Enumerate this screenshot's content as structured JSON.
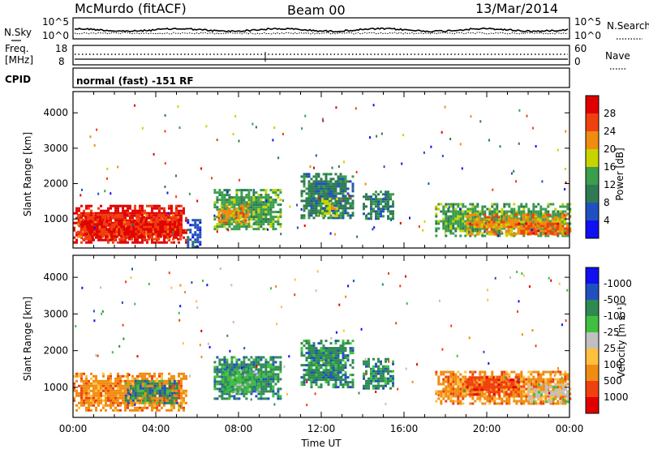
{
  "header": {
    "station": "McMurdo (fitACF)",
    "beam": "Beam 00",
    "date": "13/Mar/2014"
  },
  "noise_panel": {
    "left_label": "N.Sky",
    "right_label": "N.Search",
    "left_ticks": [
      "10^5",
      "10^0"
    ],
    "right_ticks": [
      "10^5",
      "10^0"
    ]
  },
  "freq_panel": {
    "left_label_1": "Freq.",
    "left_label_2": "[MHz]",
    "right_label": "Nave",
    "left_ticks": [
      "18",
      "8"
    ],
    "right_ticks": [
      "60",
      "0"
    ]
  },
  "cpid_panel": {
    "label": "CPID",
    "text": "normal (fast) -151 RF"
  },
  "colors": {
    "power": [
      "#1010f0",
      "#2050c0",
      "#2f7a52",
      "#3a9e4c",
      "#c8d400",
      "#f08c10",
      "#f04010",
      "#e00000"
    ],
    "velocity": [
      "#e00000",
      "#f04010",
      "#f08c10",
      "#ffc040",
      "#c0c0c0",
      "#40c040",
      "#2f8a52",
      "#2050c0",
      "#1010f0"
    ]
  },
  "chart_data": [
    {
      "type": "heatmap",
      "name": "power",
      "xlabel": "",
      "ylabel": "Slant Range [km]",
      "xlim": [
        0,
        24
      ],
      "ylim": [
        180,
        4600
      ],
      "y_ticks": [
        "1000",
        "2000",
        "3000",
        "4000"
      ],
      "colorbar_label": "Power [dB]",
      "colorbar_ticks": [
        "4",
        "8",
        "12",
        "16",
        "20",
        "24",
        "28"
      ],
      "regions": [
        {
          "t0": 0.0,
          "t1": 5.5,
          "r0": 350,
          "r1": 1400,
          "level": 7
        },
        {
          "t0": 0.2,
          "t1": 5.2,
          "r0": 400,
          "r1": 1150,
          "level": 6
        },
        {
          "t0": 0.4,
          "t1": 5.0,
          "r0": 480,
          "r1": 950,
          "level": 7
        },
        {
          "t0": 5.5,
          "t1": 6.2,
          "r0": 200,
          "r1": 1000,
          "level": 1
        },
        {
          "t0": 6.8,
          "t1": 10.0,
          "r0": 700,
          "r1": 1850,
          "level": 3
        },
        {
          "t0": 7.0,
          "t1": 8.5,
          "r0": 900,
          "r1": 1400,
          "level": 5
        },
        {
          "t0": 11.0,
          "t1": 13.5,
          "r0": 1000,
          "r1": 2300,
          "level": 2
        },
        {
          "t0": 12.0,
          "t1": 12.8,
          "r0": 1100,
          "r1": 1600,
          "level": 4
        },
        {
          "t0": 14.0,
          "t1": 15.5,
          "r0": 1000,
          "r1": 1800,
          "level": 2
        },
        {
          "t0": 17.5,
          "t1": 24.0,
          "r0": 550,
          "r1": 1450,
          "level": 3
        },
        {
          "t0": 19.0,
          "t1": 24.0,
          "r0": 600,
          "r1": 1150,
          "level": 5
        },
        {
          "t0": 21.5,
          "t1": 24.0,
          "r0": 600,
          "r1": 900,
          "level": 6
        }
      ]
    },
    {
      "type": "heatmap",
      "name": "velocity",
      "xlabel": "Time UT",
      "ylabel": "Slant Range [km]",
      "xlim": [
        0,
        24
      ],
      "ylim": [
        180,
        4600
      ],
      "x_ticks": [
        "00:00",
        "04:00",
        "08:00",
        "12:00",
        "16:00",
        "20:00",
        "00:00"
      ],
      "y_ticks": [
        "1000",
        "2000",
        "3000",
        "4000"
      ],
      "colorbar_label": "Velocity [m s⁻¹]",
      "colorbar_ticks": [
        "1000",
        "500",
        "100",
        "25",
        "-25",
        "-100",
        "-500",
        "-1000"
      ],
      "regions": [
        {
          "t0": 0.0,
          "t1": 5.5,
          "r0": 400,
          "r1": 1400,
          "level": 2
        },
        {
          "t0": 2.5,
          "t1": 5.0,
          "r0": 600,
          "r1": 1200,
          "level": 6
        },
        {
          "t0": 6.8,
          "t1": 10.0,
          "r0": 700,
          "r1": 1850,
          "level": 6
        },
        {
          "t0": 7.2,
          "t1": 9.0,
          "r0": 900,
          "r1": 1500,
          "level": 5
        },
        {
          "t0": 11.0,
          "t1": 13.5,
          "r0": 1000,
          "r1": 2300,
          "level": 6
        },
        {
          "t0": 14.0,
          "t1": 15.5,
          "r0": 1000,
          "r1": 1800,
          "level": 6
        },
        {
          "t0": 17.5,
          "t1": 24.0,
          "r0": 550,
          "r1": 1450,
          "level": 2
        },
        {
          "t0": 19.0,
          "t1": 21.5,
          "r0": 800,
          "r1": 1300,
          "level": 1
        },
        {
          "t0": 22.0,
          "t1": 24.0,
          "r0": 600,
          "r1": 1100,
          "level": 4
        }
      ]
    }
  ]
}
